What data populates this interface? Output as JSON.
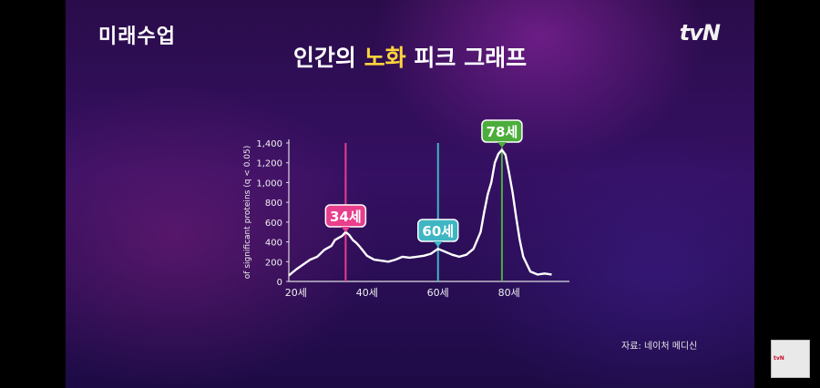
{
  "logo_left": "미래수업",
  "logo_right": "tvN",
  "title": {
    "part1": "인간의",
    "highlight": "노화",
    "part2": "피크 그래프"
  },
  "source": "자료: 네이처 메디신",
  "corner_badge": "tvN",
  "colors": {
    "line": "#ffffff",
    "peak34": "#e83e8c",
    "peak60": "#3fb6c4",
    "peak78": "#4cad3c",
    "highlight": "#ffd43b"
  },
  "chart_data": {
    "type": "line",
    "ylabel": "of significant proteins (q < 0.05)",
    "xlabel": "",
    "xlim": [
      18,
      97
    ],
    "ylim": [
      0,
      1400
    ],
    "x_ticks": [
      20,
      40,
      60,
      80
    ],
    "x_tick_labels": [
      "20세",
      "40세",
      "60세",
      "80세"
    ],
    "y_ticks": [
      0,
      200,
      400,
      600,
      800,
      1000,
      1200,
      1400
    ],
    "y_tick_labels": [
      "0",
      "200",
      "400",
      "600",
      "800",
      "1,000",
      "1,200",
      "1,400"
    ],
    "series": [
      {
        "x": [
          18,
          20,
          22,
          24,
          26,
          28,
          30,
          31,
          32,
          33,
          34,
          35,
          36,
          37,
          38,
          40,
          42,
          44,
          46,
          48,
          50,
          52,
          54,
          56,
          58,
          60,
          62,
          64,
          66,
          68,
          70,
          72,
          73,
          74,
          75,
          76,
          77,
          78,
          79,
          80,
          81,
          82,
          83,
          84,
          86,
          88,
          90,
          92
        ],
        "y": [
          60,
          120,
          170,
          220,
          250,
          320,
          360,
          420,
          440,
          460,
          500,
          470,
          420,
          390,
          350,
          260,
          220,
          210,
          200,
          220,
          250,
          240,
          250,
          260,
          280,
          330,
          300,
          270,
          250,
          270,
          330,
          500,
          700,
          880,
          1000,
          1200,
          1290,
          1330,
          1280,
          1100,
          900,
          650,
          420,
          250,
          100,
          70,
          80,
          70
        ]
      }
    ],
    "annotations": [
      {
        "label": "34세",
        "x": 34,
        "color": "#e83e8c"
      },
      {
        "label": "60세",
        "x": 60,
        "color": "#3fb6c4"
      },
      {
        "label": "78세",
        "x": 78,
        "color": "#4cad3c"
      }
    ],
    "grid": false
  }
}
